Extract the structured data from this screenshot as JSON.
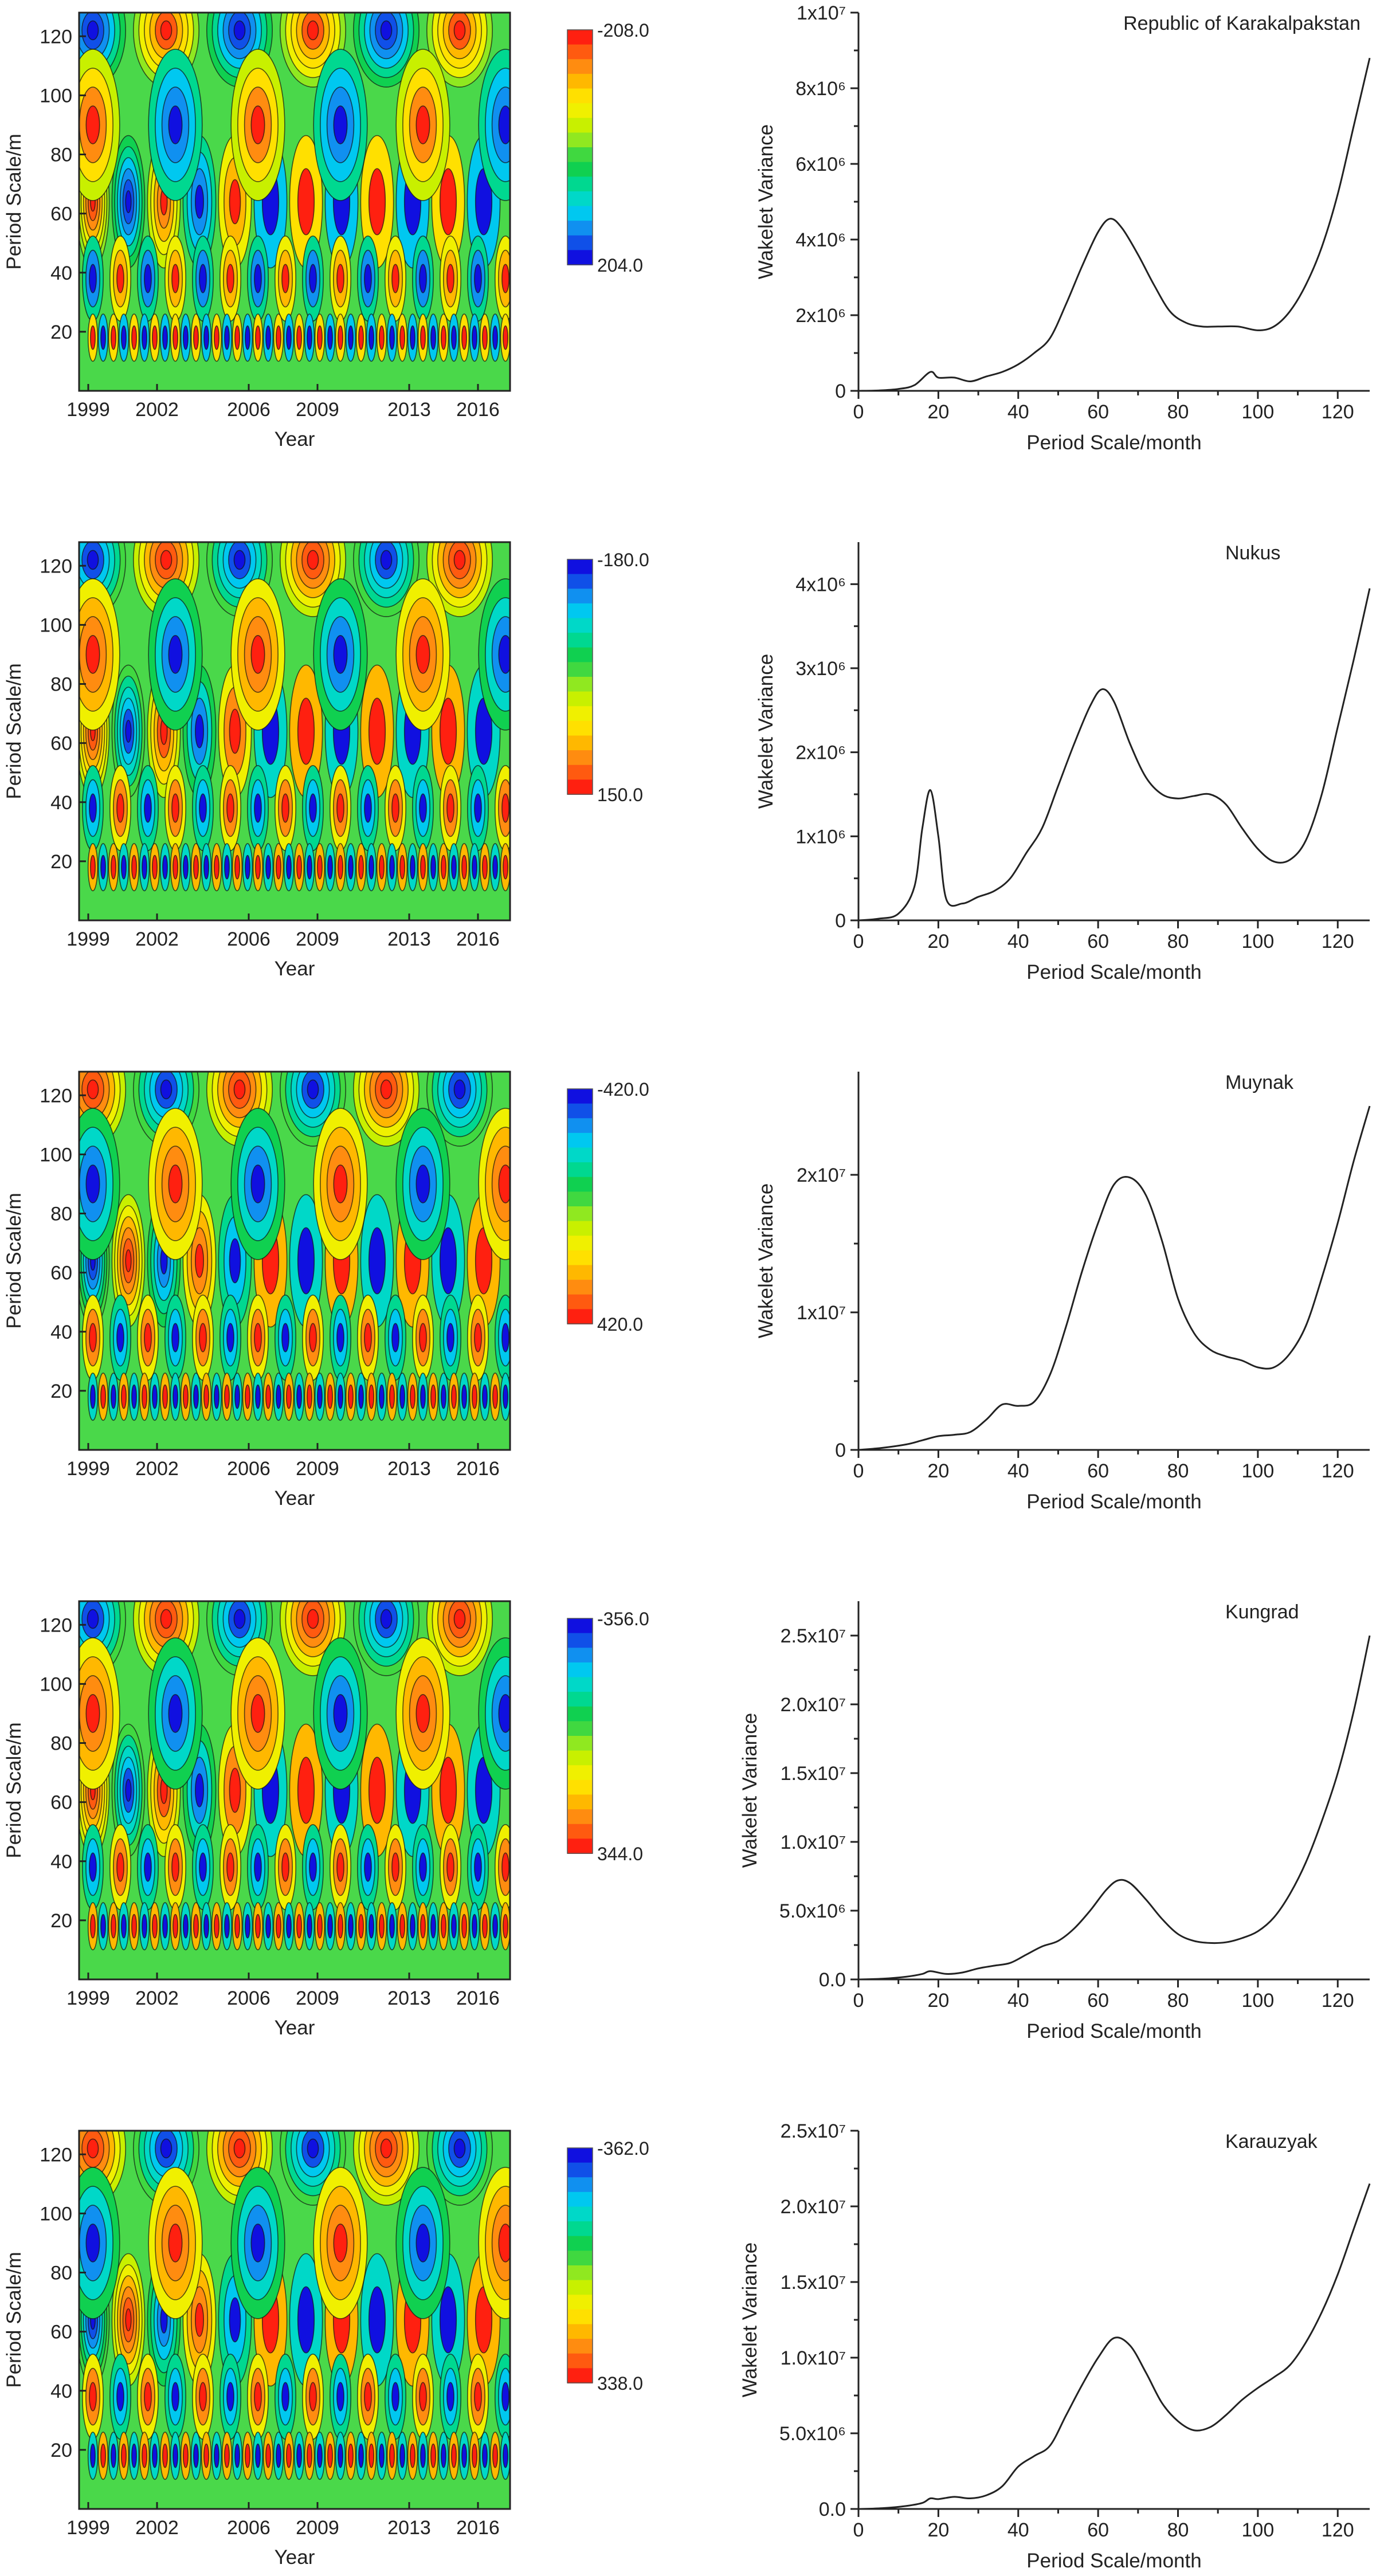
{
  "figure": {
    "row_titles": [
      "Republic of Karakalpakstan",
      "Nukus",
      "Muynak",
      "Kungrad",
      "Karauzyak"
    ]
  },
  "chart_data": [
    {
      "type": "heatmap",
      "title": "Republic of Karakalpakstan",
      "xlabel": "Year",
      "ylabel": "Period Scale/m",
      "x_ticks": [
        "1999",
        "2002",
        "2006",
        "2009",
        "2013",
        "2016"
      ],
      "y_ticks": [
        "20",
        "40",
        "60",
        "80",
        "100",
        "120"
      ],
      "xlim": [
        1998.6,
        2017.4
      ],
      "ylim": [
        0,
        128
      ],
      "colorbar": {
        "top_label": "-208.0",
        "bottom_label": "204.0",
        "top_color": "#ff2010",
        "bottom_color": "#1010e0"
      }
    },
    {
      "type": "line",
      "title": "Republic of Karakalpakstan",
      "xlabel": "Period Scale/month",
      "ylabel": "Wakelet Variance",
      "xlim": [
        0,
        128
      ],
      "ylim": [
        0,
        10000000
      ],
      "x_ticks": [
        "0",
        "20",
        "40",
        "60",
        "80",
        "100",
        "120"
      ],
      "y_ticks": [
        {
          "value": 0,
          "label": "0"
        },
        {
          "value": 2000000,
          "label": "2x10⁶"
        },
        {
          "value": 4000000,
          "label": "4x10⁶"
        },
        {
          "value": 6000000,
          "label": "6x10⁶"
        },
        {
          "value": 8000000,
          "label": "8x10⁶"
        },
        {
          "value": 10000000,
          "label": "1x10⁷"
        }
      ],
      "x": [
        0,
        5,
        10,
        14,
        18,
        20,
        24,
        28,
        32,
        36,
        40,
        44,
        48,
        52,
        56,
        60,
        63,
        66,
        70,
        74,
        78,
        82,
        86,
        90,
        95,
        100,
        104,
        108,
        112,
        116,
        120,
        124,
        128
      ],
      "values": [
        0,
        10000,
        50000,
        150000,
        500000,
        350000,
        350000,
        250000,
        380000,
        500000,
        700000,
        1000000,
        1400000,
        2300000,
        3300000,
        4200000,
        4550000,
        4300000,
        3600000,
        2800000,
        2100000,
        1800000,
        1700000,
        1700000,
        1700000,
        1600000,
        1700000,
        2100000,
        2800000,
        3800000,
        5200000,
        7000000,
        8800000
      ]
    },
    {
      "type": "heatmap",
      "title": "Nukus",
      "xlabel": "Year",
      "ylabel": "Period Scale/m",
      "x_ticks": [
        "1999",
        "2002",
        "2006",
        "2009",
        "2013",
        "2016"
      ],
      "y_ticks": [
        "20",
        "40",
        "60",
        "80",
        "100",
        "120"
      ],
      "xlim": [
        1998.6,
        2017.4
      ],
      "ylim": [
        0,
        128
      ],
      "colorbar": {
        "top_label": "-180.0",
        "bottom_label": "150.0",
        "top_color": "#1010e0",
        "bottom_color": "#ff2010"
      }
    },
    {
      "type": "line",
      "title": "Nukus",
      "xlabel": "Period Scale/month",
      "ylabel": "Wakelet Variance",
      "xlim": [
        0,
        128
      ],
      "ylim": [
        0,
        4500000
      ],
      "x_ticks": [
        "0",
        "20",
        "40",
        "60",
        "80",
        "100",
        "120"
      ],
      "y_ticks": [
        {
          "value": 0,
          "label": "0"
        },
        {
          "value": 1000000,
          "label": "1x10⁶"
        },
        {
          "value": 2000000,
          "label": "2x10⁶"
        },
        {
          "value": 3000000,
          "label": "3x10⁶"
        },
        {
          "value": 4000000,
          "label": "4x10⁶"
        }
      ],
      "x": [
        0,
        5,
        10,
        14,
        16,
        18,
        20,
        22,
        26,
        30,
        34,
        38,
        42,
        46,
        50,
        54,
        58,
        61,
        64,
        68,
        72,
        76,
        80,
        84,
        88,
        92,
        96,
        100,
        104,
        108,
        112,
        116,
        120,
        124,
        128
      ],
      "values": [
        0,
        20000,
        80000,
        400000,
        1100000,
        1550000,
        1000000,
        250000,
        200000,
        280000,
        350000,
        500000,
        800000,
        1100000,
        1600000,
        2100000,
        2550000,
        2750000,
        2600000,
        2100000,
        1700000,
        1500000,
        1450000,
        1480000,
        1500000,
        1380000,
        1100000,
        850000,
        700000,
        720000,
        950000,
        1500000,
        2300000,
        3100000,
        3950000
      ]
    },
    {
      "type": "heatmap",
      "title": "Muynak",
      "xlabel": "Year",
      "ylabel": "Period Scale/m",
      "x_ticks": [
        "1999",
        "2002",
        "2006",
        "2009",
        "2013",
        "2016"
      ],
      "y_ticks": [
        "20",
        "40",
        "60",
        "80",
        "100",
        "120"
      ],
      "xlim": [
        1998.6,
        2017.4
      ],
      "ylim": [
        0,
        128
      ],
      "colorbar": {
        "top_label": "-420.0",
        "bottom_label": "420.0",
        "top_color": "#1010e0",
        "bottom_color": "#ff2010"
      }
    },
    {
      "type": "line",
      "title": "Muynak",
      "xlabel": "Period Scale/month",
      "ylabel": "Wakelet Variance",
      "xlim": [
        0,
        128
      ],
      "ylim": [
        0,
        27500000
      ],
      "x_ticks": [
        "0",
        "20",
        "40",
        "60",
        "80",
        "100",
        "120"
      ],
      "y_ticks": [
        {
          "value": 0,
          "label": "0"
        },
        {
          "value": 10000000,
          "label": "1x10⁷"
        },
        {
          "value": 20000000,
          "label": "2x10⁷"
        }
      ],
      "x": [
        0,
        6,
        12,
        16,
        20,
        24,
        28,
        32,
        36,
        40,
        44,
        48,
        52,
        56,
        60,
        64,
        68,
        72,
        76,
        80,
        84,
        88,
        92,
        96,
        100,
        104,
        108,
        112,
        116,
        120,
        124,
        128
      ],
      "values": [
        0,
        150000,
        400000,
        700000,
        1000000,
        1100000,
        1300000,
        2200000,
        3300000,
        3200000,
        3500000,
        5500000,
        9000000,
        13000000,
        16500000,
        19300000,
        19800000,
        18500000,
        15200000,
        11000000,
        8500000,
        7300000,
        6800000,
        6500000,
        6000000,
        6000000,
        7000000,
        9000000,
        12500000,
        16500000,
        21000000,
        25000000
      ]
    },
    {
      "type": "heatmap",
      "title": "Kungrad",
      "xlabel": "Year",
      "ylabel": "Period Scale/m",
      "x_ticks": [
        "1999",
        "2002",
        "2006",
        "2009",
        "2013",
        "2016"
      ],
      "y_ticks": [
        "20",
        "40",
        "60",
        "80",
        "100",
        "120"
      ],
      "xlim": [
        1998.6,
        2017.4
      ],
      "ylim": [
        0,
        128
      ],
      "colorbar": {
        "top_label": "-356.0",
        "bottom_label": "344.0",
        "top_color": "#1010e0",
        "bottom_color": "#ff2010"
      }
    },
    {
      "type": "line",
      "title": "Kungrad",
      "xlabel": "Period Scale/month",
      "ylabel": "Wakelet Variance",
      "xlim": [
        0,
        128
      ],
      "ylim": [
        0,
        27500000
      ],
      "x_ticks": [
        "0",
        "20",
        "40",
        "60",
        "80",
        "100",
        "120"
      ],
      "y_ticks": [
        {
          "value": 0,
          "label": "0.0"
        },
        {
          "value": 5000000,
          "label": "5.0x10⁶"
        },
        {
          "value": 10000000,
          "label": "1.0x10⁷"
        },
        {
          "value": 15000000,
          "label": "1.5x10⁷"
        },
        {
          "value": 20000000,
          "label": "2.0x10⁷"
        },
        {
          "value": 25000000,
          "label": "2.5x10⁷"
        }
      ],
      "x": [
        0,
        6,
        12,
        16,
        18,
        22,
        26,
        30,
        34,
        38,
        42,
        46,
        50,
        54,
        58,
        62,
        65,
        68,
        72,
        76,
        80,
        84,
        88,
        92,
        96,
        100,
        104,
        108,
        112,
        116,
        120,
        124,
        128
      ],
      "values": [
        0,
        50000,
        200000,
        400000,
        600000,
        400000,
        500000,
        800000,
        1000000,
        1200000,
        1800000,
        2400000,
        2800000,
        3700000,
        5000000,
        6500000,
        7200000,
        7000000,
        5800000,
        4400000,
        3300000,
        2800000,
        2650000,
        2700000,
        3000000,
        3500000,
        4500000,
        6200000,
        8500000,
        11500000,
        15000000,
        19500000,
        25000000
      ]
    },
    {
      "type": "heatmap",
      "title": "Karauzyak",
      "xlabel": "Year",
      "ylabel": "Period Scale/m",
      "x_ticks": [
        "1999",
        "2002",
        "2006",
        "2009",
        "2013",
        "2016"
      ],
      "y_ticks": [
        "20",
        "40",
        "60",
        "80",
        "100",
        "120"
      ],
      "xlim": [
        1998.6,
        2017.4
      ],
      "ylim": [
        0,
        128
      ],
      "colorbar": {
        "top_label": "-362.0",
        "bottom_label": "338.0",
        "top_color": "#1010e0",
        "bottom_color": "#ff2010"
      }
    },
    {
      "type": "line",
      "title": "Karauzyak",
      "xlabel": "Period Scale/month",
      "ylabel": "Wakelet Variance",
      "xlim": [
        0,
        128
      ],
      "ylim": [
        0,
        25000000
      ],
      "x_ticks": [
        "0",
        "20",
        "40",
        "60",
        "80",
        "100",
        "120"
      ],
      "y_ticks": [
        {
          "value": 0,
          "label": "0.0"
        },
        {
          "value": 5000000,
          "label": "5.0x10⁶"
        },
        {
          "value": 10000000,
          "label": "1.0x10⁷"
        },
        {
          "value": 15000000,
          "label": "1.5x10⁷"
        },
        {
          "value": 20000000,
          "label": "2.0x10⁷"
        },
        {
          "value": 25000000,
          "label": "2.5x10⁷"
        }
      ],
      "x": [
        0,
        6,
        12,
        16,
        18,
        20,
        24,
        28,
        32,
        36,
        40,
        44,
        48,
        52,
        56,
        60,
        64,
        68,
        72,
        76,
        80,
        84,
        88,
        92,
        96,
        100,
        104,
        108,
        112,
        116,
        120,
        124,
        128
      ],
      "values": [
        0,
        50000,
        200000,
        400000,
        700000,
        650000,
        800000,
        700000,
        900000,
        1500000,
        2800000,
        3500000,
        4200000,
        6200000,
        8200000,
        10000000,
        11300000,
        10800000,
        9000000,
        7000000,
        5800000,
        5200000,
        5400000,
        6200000,
        7200000,
        8000000,
        8700000,
        9500000,
        11000000,
        13000000,
        15500000,
        18500000,
        21500000
      ]
    }
  ]
}
